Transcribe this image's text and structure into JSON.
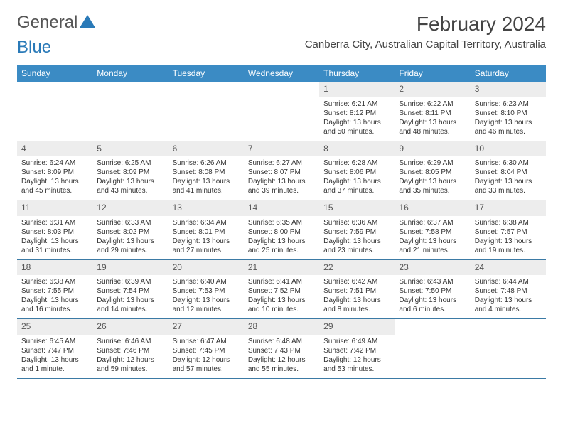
{
  "logo": {
    "part1": "General",
    "part2": "Blue"
  },
  "title": "February 2024",
  "location": "Canberra City, Australian Capital Territory, Australia",
  "colors": {
    "header_bg": "#3b8bc4",
    "header_text": "#ffffff",
    "daynum_bg": "#ededed",
    "week_border": "#3b7aa5",
    "logo_blue": "#2a7ab8"
  },
  "day_names": [
    "Sunday",
    "Monday",
    "Tuesday",
    "Wednesday",
    "Thursday",
    "Friday",
    "Saturday"
  ],
  "weeks": [
    [
      {
        "n": "",
        "sr": "",
        "ss": "",
        "dl": ""
      },
      {
        "n": "",
        "sr": "",
        "ss": "",
        "dl": ""
      },
      {
        "n": "",
        "sr": "",
        "ss": "",
        "dl": ""
      },
      {
        "n": "",
        "sr": "",
        "ss": "",
        "dl": ""
      },
      {
        "n": "1",
        "sr": "Sunrise: 6:21 AM",
        "ss": "Sunset: 8:12 PM",
        "dl": "Daylight: 13 hours and 50 minutes."
      },
      {
        "n": "2",
        "sr": "Sunrise: 6:22 AM",
        "ss": "Sunset: 8:11 PM",
        "dl": "Daylight: 13 hours and 48 minutes."
      },
      {
        "n": "3",
        "sr": "Sunrise: 6:23 AM",
        "ss": "Sunset: 8:10 PM",
        "dl": "Daylight: 13 hours and 46 minutes."
      }
    ],
    [
      {
        "n": "4",
        "sr": "Sunrise: 6:24 AM",
        "ss": "Sunset: 8:09 PM",
        "dl": "Daylight: 13 hours and 45 minutes."
      },
      {
        "n": "5",
        "sr": "Sunrise: 6:25 AM",
        "ss": "Sunset: 8:09 PM",
        "dl": "Daylight: 13 hours and 43 minutes."
      },
      {
        "n": "6",
        "sr": "Sunrise: 6:26 AM",
        "ss": "Sunset: 8:08 PM",
        "dl": "Daylight: 13 hours and 41 minutes."
      },
      {
        "n": "7",
        "sr": "Sunrise: 6:27 AM",
        "ss": "Sunset: 8:07 PM",
        "dl": "Daylight: 13 hours and 39 minutes."
      },
      {
        "n": "8",
        "sr": "Sunrise: 6:28 AM",
        "ss": "Sunset: 8:06 PM",
        "dl": "Daylight: 13 hours and 37 minutes."
      },
      {
        "n": "9",
        "sr": "Sunrise: 6:29 AM",
        "ss": "Sunset: 8:05 PM",
        "dl": "Daylight: 13 hours and 35 minutes."
      },
      {
        "n": "10",
        "sr": "Sunrise: 6:30 AM",
        "ss": "Sunset: 8:04 PM",
        "dl": "Daylight: 13 hours and 33 minutes."
      }
    ],
    [
      {
        "n": "11",
        "sr": "Sunrise: 6:31 AM",
        "ss": "Sunset: 8:03 PM",
        "dl": "Daylight: 13 hours and 31 minutes."
      },
      {
        "n": "12",
        "sr": "Sunrise: 6:33 AM",
        "ss": "Sunset: 8:02 PM",
        "dl": "Daylight: 13 hours and 29 minutes."
      },
      {
        "n": "13",
        "sr": "Sunrise: 6:34 AM",
        "ss": "Sunset: 8:01 PM",
        "dl": "Daylight: 13 hours and 27 minutes."
      },
      {
        "n": "14",
        "sr": "Sunrise: 6:35 AM",
        "ss": "Sunset: 8:00 PM",
        "dl": "Daylight: 13 hours and 25 minutes."
      },
      {
        "n": "15",
        "sr": "Sunrise: 6:36 AM",
        "ss": "Sunset: 7:59 PM",
        "dl": "Daylight: 13 hours and 23 minutes."
      },
      {
        "n": "16",
        "sr": "Sunrise: 6:37 AM",
        "ss": "Sunset: 7:58 PM",
        "dl": "Daylight: 13 hours and 21 minutes."
      },
      {
        "n": "17",
        "sr": "Sunrise: 6:38 AM",
        "ss": "Sunset: 7:57 PM",
        "dl": "Daylight: 13 hours and 19 minutes."
      }
    ],
    [
      {
        "n": "18",
        "sr": "Sunrise: 6:38 AM",
        "ss": "Sunset: 7:55 PM",
        "dl": "Daylight: 13 hours and 16 minutes."
      },
      {
        "n": "19",
        "sr": "Sunrise: 6:39 AM",
        "ss": "Sunset: 7:54 PM",
        "dl": "Daylight: 13 hours and 14 minutes."
      },
      {
        "n": "20",
        "sr": "Sunrise: 6:40 AM",
        "ss": "Sunset: 7:53 PM",
        "dl": "Daylight: 13 hours and 12 minutes."
      },
      {
        "n": "21",
        "sr": "Sunrise: 6:41 AM",
        "ss": "Sunset: 7:52 PM",
        "dl": "Daylight: 13 hours and 10 minutes."
      },
      {
        "n": "22",
        "sr": "Sunrise: 6:42 AM",
        "ss": "Sunset: 7:51 PM",
        "dl": "Daylight: 13 hours and 8 minutes."
      },
      {
        "n": "23",
        "sr": "Sunrise: 6:43 AM",
        "ss": "Sunset: 7:50 PM",
        "dl": "Daylight: 13 hours and 6 minutes."
      },
      {
        "n": "24",
        "sr": "Sunrise: 6:44 AM",
        "ss": "Sunset: 7:48 PM",
        "dl": "Daylight: 13 hours and 4 minutes."
      }
    ],
    [
      {
        "n": "25",
        "sr": "Sunrise: 6:45 AM",
        "ss": "Sunset: 7:47 PM",
        "dl": "Daylight: 13 hours and 1 minute."
      },
      {
        "n": "26",
        "sr": "Sunrise: 6:46 AM",
        "ss": "Sunset: 7:46 PM",
        "dl": "Daylight: 12 hours and 59 minutes."
      },
      {
        "n": "27",
        "sr": "Sunrise: 6:47 AM",
        "ss": "Sunset: 7:45 PM",
        "dl": "Daylight: 12 hours and 57 minutes."
      },
      {
        "n": "28",
        "sr": "Sunrise: 6:48 AM",
        "ss": "Sunset: 7:43 PM",
        "dl": "Daylight: 12 hours and 55 minutes."
      },
      {
        "n": "29",
        "sr": "Sunrise: 6:49 AM",
        "ss": "Sunset: 7:42 PM",
        "dl": "Daylight: 12 hours and 53 minutes."
      },
      {
        "n": "",
        "sr": "",
        "ss": "",
        "dl": ""
      },
      {
        "n": "",
        "sr": "",
        "ss": "",
        "dl": ""
      }
    ]
  ]
}
